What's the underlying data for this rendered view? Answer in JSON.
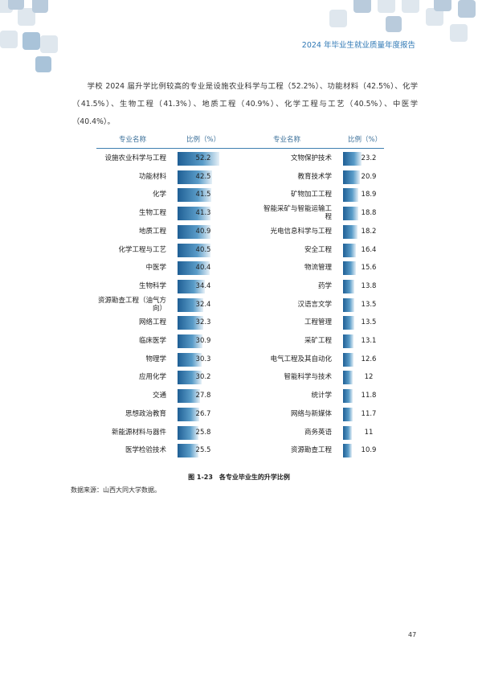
{
  "header": {
    "title": "2024 年毕业生就业质量年度报告"
  },
  "body": {
    "paragraph": "学校 2024 届升学比例较高的专业是设施农业科学与工程（52.2%）、功能材料（42.5%）、化学（41.5%）、生物工程（41.3%）、地质工程（40.9%）、化学工程与工艺（40.5%）、中医学（40.4%）。"
  },
  "table": {
    "headers": [
      "专业名称",
      "比例（%）",
      "专业名称",
      "比例（%）"
    ],
    "rows": [
      [
        "设施农业科学与工程",
        52.2,
        "文物保护技术",
        23.2
      ],
      [
        "功能材料",
        42.5,
        "教育技术学",
        20.9
      ],
      [
        "化学",
        41.5,
        "矿物加工工程",
        18.9
      ],
      [
        "生物工程",
        41.3,
        "智能采矿与智能运输工程",
        18.8
      ],
      [
        "地质工程",
        40.9,
        "光电信息科学与工程",
        18.2
      ],
      [
        "化学工程与工艺",
        40.5,
        "安全工程",
        16.4
      ],
      [
        "中医学",
        40.4,
        "物流管理",
        15.6
      ],
      [
        "生物科学",
        34.4,
        "药学",
        13.8
      ],
      [
        "资源勘查工程（油气方向）",
        32.4,
        "汉语言文学",
        13.5
      ],
      [
        "网络工程",
        32.3,
        "工程管理",
        13.5
      ],
      [
        "临床医学",
        30.9,
        "采矿工程",
        13.1
      ],
      [
        "物理学",
        30.3,
        "电气工程及其自动化",
        12.6
      ],
      [
        "应用化学",
        30.2,
        "智能科学与技术",
        12.0
      ],
      [
        "交通",
        27.8,
        "统计学",
        11.8
      ],
      [
        "思想政治教育",
        26.7,
        "网络与新媒体",
        11.7
      ],
      [
        "新能源材料与器件",
        25.8,
        "商务英语",
        11.0
      ],
      [
        "医学检验技术",
        25.5,
        "资源勘查工程",
        10.9
      ]
    ]
  },
  "figure": {
    "caption": "图 1-23　各专业毕业生的升学比例",
    "source": "数据来源：山西大同大学数据。"
  },
  "footer": {
    "page_number": "47"
  }
}
